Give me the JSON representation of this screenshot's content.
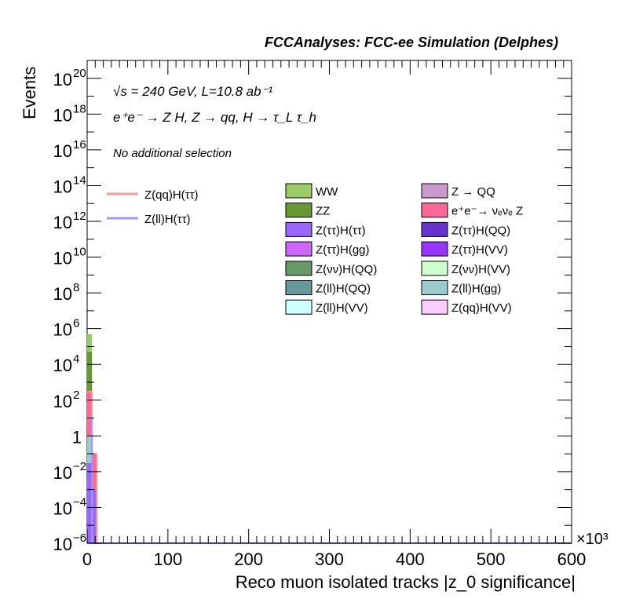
{
  "header": {
    "title": "FCCAnalyses: FCC-ee Simulation (Delphes)"
  },
  "labels": {
    "energy_lumi": "√s = 240 GeV, L=10.8 ab⁻¹",
    "process": "e⁺e⁻ → Z H, Z → qq, H → τ_L τ_h",
    "selection": "No additional selection"
  },
  "chart_data": {
    "type": "bar",
    "title": "FCCAnalyses: FCC-ee Simulation (Delphes)",
    "xlabel": "Reco muon isolated tracks |z_0 significance|",
    "ylabel": "Events",
    "x_multiplier": "×10³",
    "xlim": [
      0,
      600
    ],
    "ylim_exponent": [
      -6,
      21
    ],
    "log_y": true,
    "x_ticks": [
      "0",
      "100",
      "200",
      "300",
      "400",
      "500",
      "600"
    ],
    "y_ticks": [
      {
        "base": "10",
        "exp": "20",
        "value": 1e+20
      },
      {
        "base": "10",
        "exp": "18",
        "value": 1e+18
      },
      {
        "base": "10",
        "exp": "16",
        "value": 1e+16
      },
      {
        "base": "10",
        "exp": "14",
        "value": 100000000000000.0
      },
      {
        "base": "10",
        "exp": "12",
        "value": 1000000000000.0
      },
      {
        "base": "10",
        "exp": "10",
        "value": 10000000000.0
      },
      {
        "base": "10",
        "exp": "8",
        "value": 100000000.0
      },
      {
        "base": "10",
        "exp": "6",
        "value": 1000000.0
      },
      {
        "base": "10",
        "exp": "4",
        "value": 10000.0
      },
      {
        "base": "10",
        "exp": "2",
        "value": 100.0
      },
      {
        "base": "1",
        "exp": "",
        "value": 1
      },
      {
        "base": "10",
        "exp": "−2",
        "value": 0.01
      },
      {
        "base": "10",
        "exp": "−4",
        "value": 0.0001
      },
      {
        "base": "10",
        "exp": "−6",
        "value": 1e-06
      }
    ],
    "legend_lines": [
      {
        "name": "Z(qq)H(ττ)",
        "color": "#f59a9a"
      },
      {
        "name": "Z(ll)H(ττ)",
        "color": "#9c9cf5"
      }
    ],
    "legend_fills": [
      {
        "name": "WW",
        "color": "#99cc66"
      },
      {
        "name": "Z → QQ",
        "color": "#cc99cc"
      },
      {
        "name": "ZZ",
        "color": "#669933"
      },
      {
        "name": "e⁺e⁻→ νₑνₑ Z",
        "color": "#ff6699"
      },
      {
        "name": "Z(ττ)H(ττ)",
        "color": "#9966ff"
      },
      {
        "name": "Z(ττ)H(QQ)",
        "color": "#6633cc"
      },
      {
        "name": "Z(ττ)H(gg)",
        "color": "#cc66ff"
      },
      {
        "name": "Z(ττ)H(VV)",
        "color": "#9933ff"
      },
      {
        "name": "Z(νν)H(QQ)",
        "color": "#669966"
      },
      {
        "name": "Z(νν)H(VV)",
        "color": "#ccffcc"
      },
      {
        "name": "Z(ll)H(QQ)",
        "color": "#669999"
      },
      {
        "name": "Z(ll)H(gg)",
        "color": "#99cccc"
      },
      {
        "name": "Z(ll)H(VV)",
        "color": "#ccffff"
      },
      {
        "name": "Z(qq)H(VV)",
        "color": "#ffccff"
      }
    ],
    "bars": [
      {
        "x0": 0,
        "x1": 6,
        "value": 500000,
        "color": "#99cc66"
      },
      {
        "x0": 0,
        "x1": 6,
        "value": 50000,
        "color": "#669933"
      },
      {
        "x0": 0,
        "x1": 6,
        "value": 300,
        "color": "#ff6699"
      },
      {
        "x0": 0,
        "x1": 6,
        "value": 1,
        "color": "#99cccc"
      },
      {
        "x0": 0,
        "x1": 6,
        "value": 0.03,
        "color": "#9966ff"
      },
      {
        "x0": 6,
        "x1": 12,
        "value": 0.1,
        "color": "#ff6699"
      },
      {
        "x0": 6,
        "x1": 12,
        "value": 0.001,
        "color": "#9966ff"
      }
    ],
    "lines": [
      {
        "name": "Z(qq)H(ττ)",
        "color": "#f59a9a",
        "x": [
          0,
          6,
          6,
          12,
          12,
          600
        ],
        "y": [
          300,
          300,
          0.1,
          0.1,
          1e-06,
          1e-06
        ]
      },
      {
        "name": "Z(ll)H(ττ)",
        "color": "#9c9cf5",
        "x": [
          0,
          6,
          6,
          600
        ],
        "y": [
          10,
          10,
          1e-06,
          1e-06
        ]
      }
    ]
  }
}
